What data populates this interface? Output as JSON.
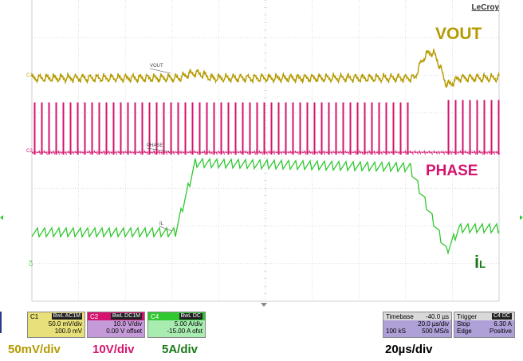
{
  "brand": "LeCroy",
  "traces": {
    "vout": {
      "marker": "C1",
      "label": "VOUT",
      "color": "#b59a00",
      "annotation": "VOUT"
    },
    "phase": {
      "marker": "C2",
      "label": "PHASE",
      "color": "#d4146e",
      "annotation": "PHASE"
    },
    "il": {
      "marker": "C4",
      "label": "IL",
      "color": "#2fc82f",
      "annotation": "iL",
      "annotation_main": "i",
      "annotation_sub": "L"
    }
  },
  "channels": {
    "c1": {
      "name": "C1",
      "tag": "BwL AC1M",
      "line1": "50.0 mV/div",
      "line2": "100.0 mV",
      "bg": "#e8e07a"
    },
    "c2": {
      "name": "C2",
      "tag": "BwL DC1M",
      "line1": "10.0 V/div",
      "line2": "0.00 V offset",
      "bg": "#c49ad8"
    },
    "c4": {
      "name": "C4",
      "tag": "BwL DC",
      "line1": "5.00 A/div",
      "line2": "-15.00 A ofst",
      "bg": "#a8ecb0"
    }
  },
  "timebase": {
    "label": "Timebase",
    "value": "-40.0 µs",
    "per_div": "20.0 µs/div",
    "samples": "100 kS",
    "rate": "500 MS/s"
  },
  "trigger": {
    "label": "Trigger",
    "tag": "C4 DC",
    "mode": "Stop",
    "level": "6.30 A",
    "type": "Edge",
    "slope": "Positive"
  },
  "scale_labels": {
    "vout": {
      "text": "50mV/div",
      "color": "#b59a00"
    },
    "phase": {
      "text": "10V/div",
      "color": "#d4146e"
    },
    "il": {
      "text": "5A/div",
      "color": "#1a7a1a"
    },
    "time": {
      "text": "20µs/div",
      "color": "#000000"
    }
  },
  "colors": {
    "grid": "#cfcfcf",
    "box_bg": "#d9d9d9"
  }
}
